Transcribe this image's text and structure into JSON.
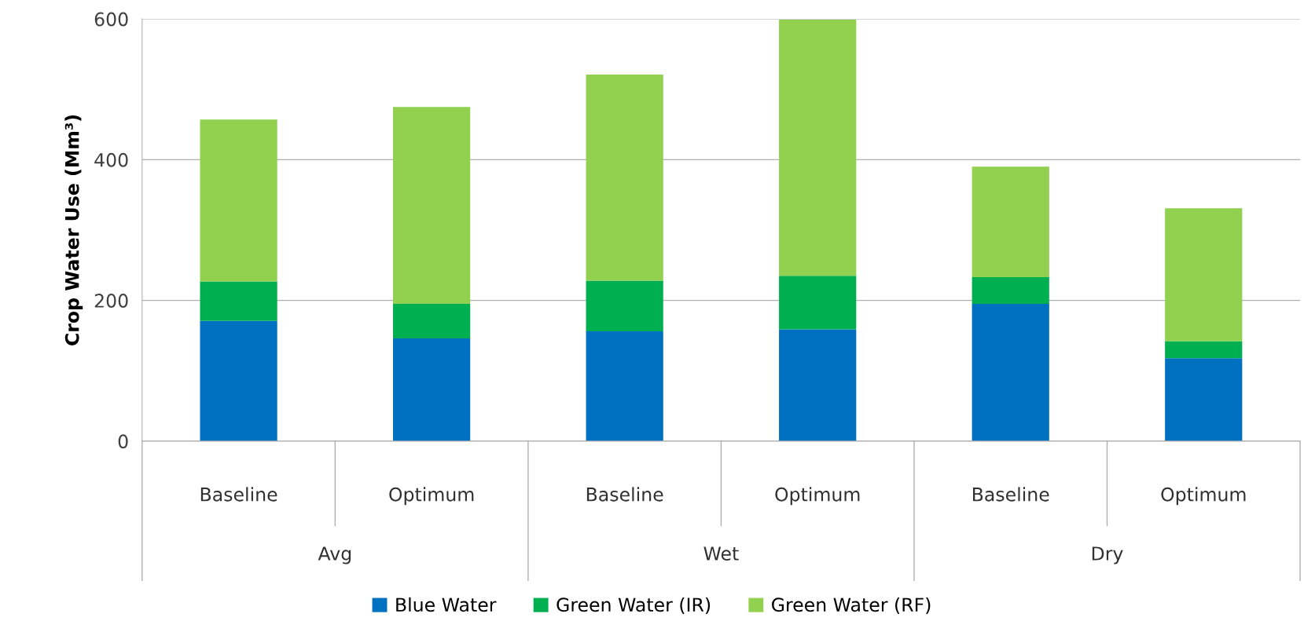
{
  "chart_data": {
    "type": "bar",
    "stacked": true,
    "ylabel": "Crop Water Use (Mm³)",
    "categories": [
      "Baseline",
      "Optimum",
      "Baseline",
      "Optimum",
      "Baseline",
      "Optimum"
    ],
    "annotations": [
      "Avg",
      "Wet",
      "Dry"
    ],
    "series": [
      {
        "name": "Blue Water",
        "color": "#0070c0",
        "values": [
          171,
          146,
          156,
          159,
          195,
          118
        ]
      },
      {
        "name": "Green Water (IR)",
        "color": "#00b050",
        "values": [
          56,
          49,
          72,
          76,
          38,
          24
        ]
      },
      {
        "name": "Green Water (RF)",
        "color": "#92d050",
        "values": [
          230,
          280,
          293,
          364,
          157,
          189
        ]
      }
    ],
    "ylim": [
      0,
      600
    ],
    "yticks": [
      0,
      200,
      400,
      600
    ],
    "grid": "y",
    "legend": "bottom"
  }
}
